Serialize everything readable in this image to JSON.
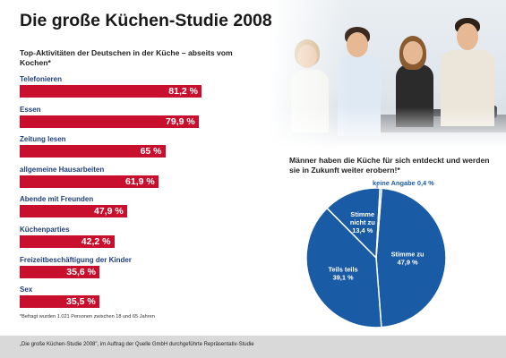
{
  "title": "Die große Küchen-Studie 2008",
  "subtitle": "Top-Aktivitäten der Deutschen in der Küche – abseits vom Kochen*",
  "footnote": "*Befragt wurden 1.021 Personen zwischen 18 und 65 Jahren",
  "source": "„Die große Küchen-Studie 2008\", im Auftrag der Quelle GmbH durchgeführte Repräsentativ-Studie",
  "colors": {
    "bar": "#c8102e",
    "label": "#1e3f7a",
    "pie": "#1a5ba6",
    "footer_bg": "#d9d9d9"
  },
  "chart_data": [
    {
      "type": "bar",
      "orientation": "horizontal",
      "title": "Top-Aktivitäten der Deutschen in der Küche – abseits vom Kochen*",
      "categories": [
        "Telefonieren",
        "Essen",
        "Zeitung lesen",
        "allgemeine Hausarbeiten",
        "Abende mit Freunden",
        "Küchenparties",
        "Freizeitbeschäftigung der Kinder",
        "Sex"
      ],
      "values": [
        81.2,
        79.9,
        65,
        61.9,
        47.9,
        42.2,
        35.6,
        35.5
      ],
      "value_labels": [
        "81,2 %",
        "79,9 %",
        "65 %",
        "61,9 %",
        "47,9 %",
        "42,2 %",
        "35,6 %",
        "35,5 %"
      ],
      "unit": "%",
      "xlim": [
        0,
        100
      ]
    },
    {
      "type": "pie",
      "title": "Männer haben die Küche für sich entdeckt und werden sie in Zukunft weiter erobern!*",
      "slices": [
        {
          "label": "Stimme zu",
          "value": 47.9,
          "value_label": "47,9 %"
        },
        {
          "label": "Teils teils",
          "value": 39.1,
          "value_label": "39,1 %"
        },
        {
          "label": "Stimme nicht zu",
          "value": 13.4,
          "value_label": "13,4 %"
        },
        {
          "label": "keine Angabe",
          "value": 0.4,
          "value_label": "0,4 %"
        }
      ]
    }
  ]
}
